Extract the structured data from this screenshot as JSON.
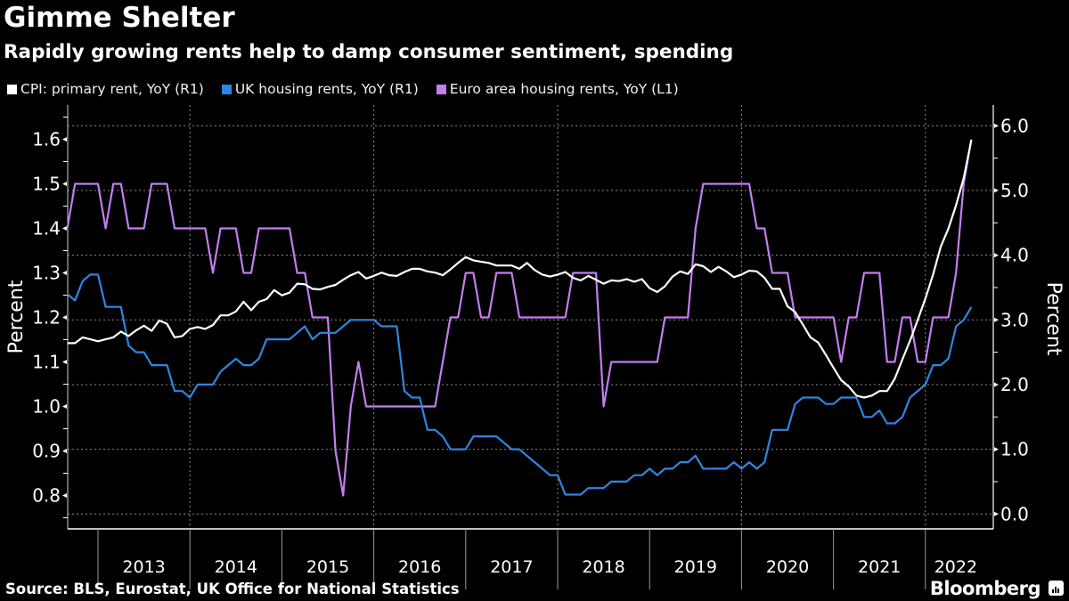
{
  "header": {
    "title": "Gimme Shelter",
    "subtitle": "Rapidly growing rents help to damp consumer sentiment, spending"
  },
  "footer": {
    "source": "Source: BLS, Eurostat, UK Office for National Statistics",
    "brand": "Bloomberg"
  },
  "chart_data": {
    "type": "line",
    "title": "Gimme Shelter",
    "subtitle": "Rapidly growing rents help to damp consumer sentiment, spending",
    "frequency": "monthly",
    "start": "2012-09",
    "end": "2022-07",
    "xlabel": "",
    "x_ticks": [
      "2013",
      "2014",
      "2015",
      "2016",
      "2017",
      "2018",
      "2019",
      "2020",
      "2021",
      "2022"
    ],
    "left_axis": {
      "label": "Percent",
      "ylim": [
        0.725,
        1.677
      ],
      "ticks": [
        "0.8",
        "0.9",
        "1.0",
        "1.1",
        "1.2",
        "1.3",
        "1.4",
        "1.5",
        "1.6"
      ]
    },
    "right_axis": {
      "label": "Percent",
      "ylim": [
        -0.23,
        6.32
      ],
      "ticks": [
        "0.0",
        "1.0",
        "2.0",
        "3.0",
        "4.0",
        "5.0",
        "6.0"
      ]
    },
    "grid": true,
    "legend_position": "top-left",
    "series": [
      {
        "name": "CPI: primary rent, YoY (R1)",
        "axis": "right",
        "color": "#ffffff",
        "values": [
          2.64,
          2.64,
          2.73,
          2.7,
          2.67,
          2.7,
          2.73,
          2.82,
          2.75,
          2.84,
          2.91,
          2.83,
          2.99,
          2.94,
          2.73,
          2.75,
          2.86,
          2.89,
          2.86,
          2.92,
          3.07,
          3.07,
          3.13,
          3.28,
          3.15,
          3.28,
          3.32,
          3.46,
          3.38,
          3.42,
          3.56,
          3.55,
          3.48,
          3.47,
          3.51,
          3.54,
          3.62,
          3.69,
          3.74,
          3.64,
          3.68,
          3.73,
          3.69,
          3.68,
          3.74,
          3.79,
          3.79,
          3.75,
          3.73,
          3.69,
          3.78,
          3.88,
          3.97,
          3.92,
          3.9,
          3.88,
          3.84,
          3.84,
          3.84,
          3.79,
          3.88,
          3.77,
          3.7,
          3.67,
          3.7,
          3.74,
          3.65,
          3.61,
          3.68,
          3.62,
          3.56,
          3.61,
          3.6,
          3.63,
          3.59,
          3.63,
          3.49,
          3.43,
          3.52,
          3.67,
          3.75,
          3.71,
          3.86,
          3.83,
          3.74,
          3.82,
          3.75,
          3.66,
          3.7,
          3.76,
          3.75,
          3.65,
          3.48,
          3.48,
          3.21,
          3.12,
          2.93,
          2.73,
          2.65,
          2.46,
          2.26,
          2.07,
          1.97,
          1.83,
          1.8,
          1.83,
          1.9,
          1.9,
          2.09,
          2.39,
          2.68,
          3.0,
          3.33,
          3.7,
          4.13,
          4.41,
          4.77,
          5.19,
          5.78
        ]
      },
      {
        "name": "UK housing rents, YoY (R1)",
        "axis": "right",
        "color": "#2f86e0",
        "values": [
          3.4,
          3.3,
          3.6,
          3.7,
          3.7,
          3.2,
          3.2,
          3.2,
          2.6,
          2.5,
          2.5,
          2.3,
          2.3,
          2.3,
          1.9,
          1.9,
          1.8,
          2.0,
          2.0,
          2.0,
          2.2,
          2.3,
          2.4,
          2.3,
          2.3,
          2.4,
          2.7,
          2.7,
          2.7,
          2.7,
          2.8,
          2.9,
          2.7,
          2.8,
          2.8,
          2.8,
          2.9,
          3.0,
          3.0,
          3.0,
          3.0,
          2.9,
          2.9,
          2.9,
          1.9,
          1.8,
          1.8,
          1.3,
          1.3,
          1.2,
          1.0,
          1.0,
          1.0,
          1.2,
          1.2,
          1.2,
          1.2,
          1.1,
          1.0,
          1.0,
          0.9,
          0.8,
          0.7,
          0.6,
          0.6,
          0.3,
          0.3,
          0.3,
          0.4,
          0.4,
          0.4,
          0.5,
          0.5,
          0.5,
          0.6,
          0.6,
          0.7,
          0.6,
          0.7,
          0.7,
          0.8,
          0.8,
          0.9,
          0.7,
          0.7,
          0.7,
          0.7,
          0.8,
          0.7,
          0.8,
          0.7,
          0.8,
          1.3,
          1.3,
          1.3,
          1.7,
          1.8,
          1.8,
          1.8,
          1.7,
          1.7,
          1.8,
          1.8,
          1.8,
          1.5,
          1.5,
          1.6,
          1.4,
          1.4,
          1.5,
          1.8,
          1.9,
          2.0,
          2.3,
          2.3,
          2.4,
          2.9,
          3.0,
          3.2
        ]
      },
      {
        "name": "Euro area housing rents, YoY (L1)",
        "axis": "left",
        "color": "#c47ef0",
        "values": [
          1.4,
          1.5,
          1.5,
          1.5,
          1.5,
          1.4,
          1.5,
          1.5,
          1.4,
          1.4,
          1.4,
          1.5,
          1.5,
          1.5,
          1.4,
          1.4,
          1.4,
          1.4,
          1.4,
          1.3,
          1.4,
          1.4,
          1.4,
          1.3,
          1.3,
          1.4,
          1.4,
          1.4,
          1.4,
          1.4,
          1.3,
          1.3,
          1.2,
          1.2,
          1.2,
          0.9,
          0.8,
          1.0,
          1.1,
          1.0,
          1.0,
          1.0,
          1.0,
          1.0,
          1.0,
          1.0,
          1.0,
          1.0,
          1.0,
          1.1,
          1.2,
          1.2,
          1.3,
          1.3,
          1.2,
          1.2,
          1.3,
          1.3,
          1.3,
          1.2,
          1.2,
          1.2,
          1.2,
          1.2,
          1.2,
          1.2,
          1.3,
          1.3,
          1.3,
          1.3,
          1.0,
          1.1,
          1.1,
          1.1,
          1.1,
          1.1,
          1.1,
          1.1,
          1.2,
          1.2,
          1.2,
          1.2,
          1.4,
          1.5,
          1.5,
          1.5,
          1.5,
          1.5,
          1.5,
          1.5,
          1.4,
          1.4,
          1.3,
          1.3,
          1.3,
          1.2,
          1.2,
          1.2,
          1.2,
          1.2,
          1.2,
          1.1,
          1.2,
          1.2,
          1.3,
          1.3,
          1.3,
          1.1,
          1.1,
          1.2,
          1.2,
          1.1,
          1.1,
          1.2,
          1.2,
          1.2,
          1.3,
          1.5,
          1.6
        ]
      }
    ]
  }
}
